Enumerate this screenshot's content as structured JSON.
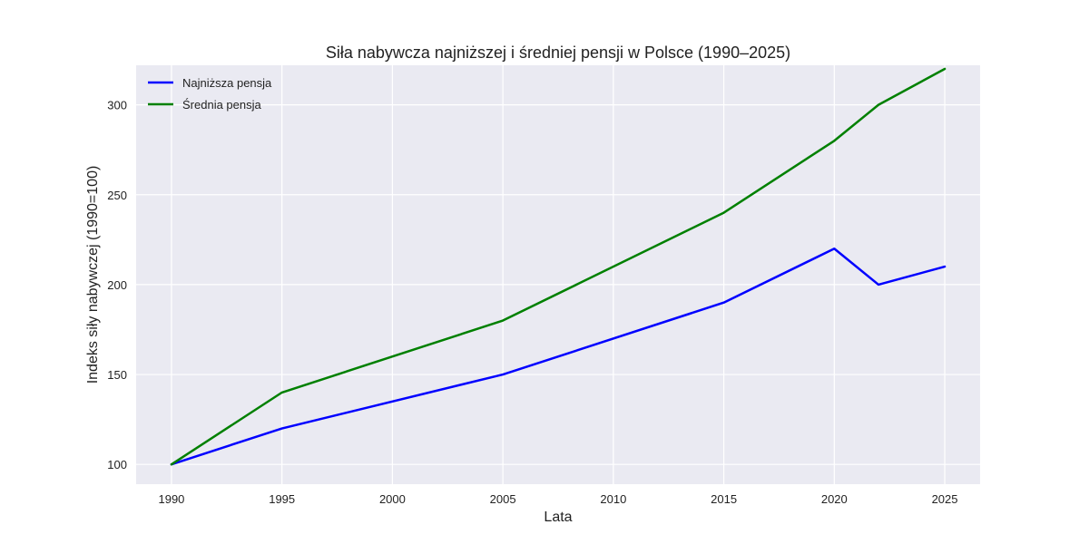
{
  "chart_data": {
    "type": "line",
    "title": "Siła nabywcza najniższej i średniej pensji w Polsce (1990–2025)",
    "xlabel": "Lata",
    "ylabel": "Indeks siły nabywczej (1990=100)",
    "xlim": [
      1988.4,
      2026.6
    ],
    "ylim": [
      89,
      322
    ],
    "x_ticks": [
      1990,
      1995,
      2000,
      2005,
      2010,
      2015,
      2020,
      2025
    ],
    "y_ticks": [
      100,
      150,
      200,
      250,
      300
    ],
    "grid": true,
    "legend_position": "top-left",
    "series": [
      {
        "name": "Najniższa pensja",
        "color": "#0000ff",
        "x": [
          1990,
          1995,
          2005,
          2015,
          2020,
          2022,
          2025
        ],
        "values": [
          100,
          120,
          150,
          190,
          220,
          200,
          210
        ]
      },
      {
        "name": "Średnia pensja",
        "color": "#008000",
        "x": [
          1990,
          1995,
          2005,
          2015,
          2020,
          2022,
          2025
        ],
        "values": [
          100,
          140,
          180,
          240,
          280,
          300,
          320
        ]
      }
    ]
  },
  "colors": {
    "plot_background": "#eaeaf2",
    "grid": "#ffffff"
  }
}
